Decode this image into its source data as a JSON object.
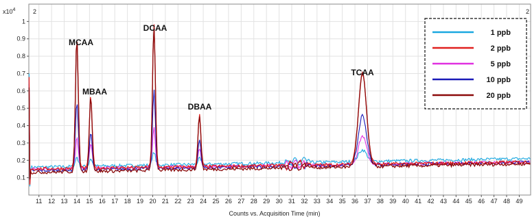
{
  "chart_data": {
    "type": "line",
    "title": "",
    "xlabel": "Counts vs. Acquisition Time (min)",
    "ylabel": "",
    "y_multiplier": "x10 4",
    "xlim": [
      10.2,
      49.9
    ],
    "ylim": [
      0,
      1.1
    ],
    "x_ticks": [
      11,
      12,
      13,
      14,
      15,
      16,
      17,
      18,
      19,
      20,
      21,
      22,
      23,
      24,
      25,
      26,
      27,
      28,
      29,
      30,
      31,
      32,
      33,
      34,
      35,
      36,
      37,
      38,
      39,
      40,
      41,
      42,
      43,
      44,
      45,
      46,
      47,
      48,
      49
    ],
    "y_ticks": [
      0.1,
      0.2,
      0.3,
      0.4,
      0.5,
      0.6,
      0.7,
      0.8,
      0.9,
      1
    ],
    "grid": true,
    "corner_marks": [
      "2",
      "2"
    ],
    "legend_position": "top-right",
    "peaks": [
      {
        "label": "MCAA",
        "time": 14.0,
        "heights": [
          0.22,
          0.9,
          0.33,
          0.54,
          0.9
        ]
      },
      {
        "label": "MBAA",
        "time": 15.1,
        "heights": [
          0.21,
          0.57,
          0.3,
          0.36,
          0.57
        ]
      },
      {
        "label": "DCAA",
        "time": 20.1,
        "heights": [
          0.25,
          0.98,
          0.39,
          0.6,
          0.98
        ]
      },
      {
        "label": "DBAA",
        "time": 23.7,
        "heights": [
          0.21,
          0.46,
          0.27,
          0.32,
          0.46
        ]
      },
      {
        "label": "TCAA",
        "time": 36.6,
        "heights": [
          0.26,
          0.7,
          0.34,
          0.46,
          0.7
        ]
      }
    ],
    "series": [
      {
        "name": "1 ppb",
        "color": "#1aa7e0",
        "baseline": [
          0.16,
          0.21
        ]
      },
      {
        "name": "2 ppb",
        "color": "#e0201e",
        "baseline": [
          0.15,
          0.19
        ]
      },
      {
        "name": "5 ppb",
        "color": "#e030e0",
        "baseline": [
          0.15,
          0.19
        ]
      },
      {
        "name": "10 ppb",
        "color": "#1a1ab8",
        "baseline": [
          0.14,
          0.19
        ]
      },
      {
        "name": "20 ppb",
        "color": "#8b0a0a",
        "baseline": [
          0.13,
          0.18
        ]
      }
    ]
  }
}
